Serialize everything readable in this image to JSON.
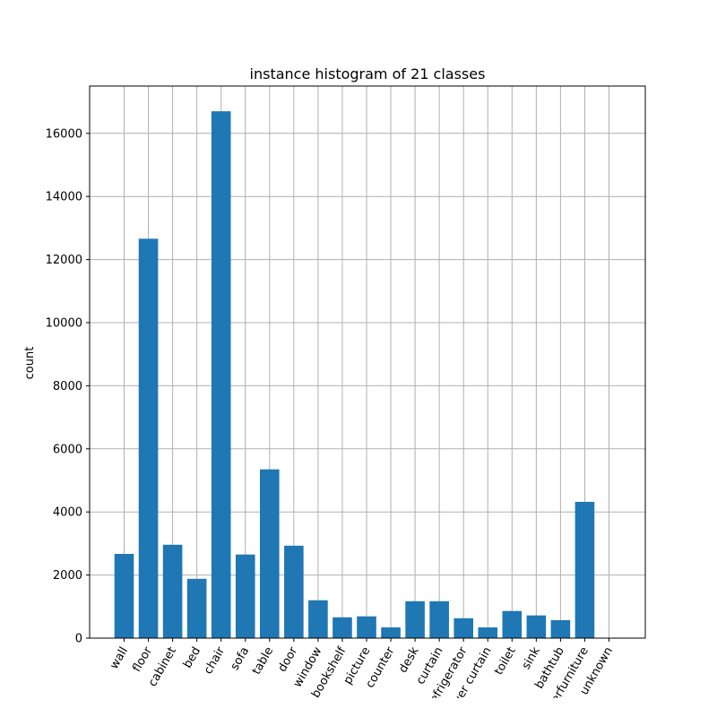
{
  "chart_data": {
    "type": "bar",
    "title": "instance histogram of 21 classes",
    "xlabel": "",
    "ylabel": "count",
    "ylim": [
      0,
      17500
    ],
    "yticks": [
      0,
      2000,
      4000,
      6000,
      8000,
      10000,
      12000,
      14000,
      16000
    ],
    "grid": true,
    "bar_color": "#1f77b4",
    "categories": [
      "wall",
      "floor",
      "cabinet",
      "bed",
      "chair",
      "sofa",
      "table",
      "door",
      "window",
      "bookshelf",
      "picture",
      "counter",
      "desk",
      "curtain",
      "refrigerator",
      "shower curtain",
      "toilet",
      "sink",
      "bathtub",
      "otherfurniture",
      "unknown"
    ],
    "values": [
      2670,
      12660,
      2960,
      1880,
      16700,
      2650,
      5350,
      2930,
      1200,
      660,
      690,
      340,
      1170,
      1170,
      630,
      340,
      860,
      720,
      570,
      4320,
      0
    ]
  }
}
